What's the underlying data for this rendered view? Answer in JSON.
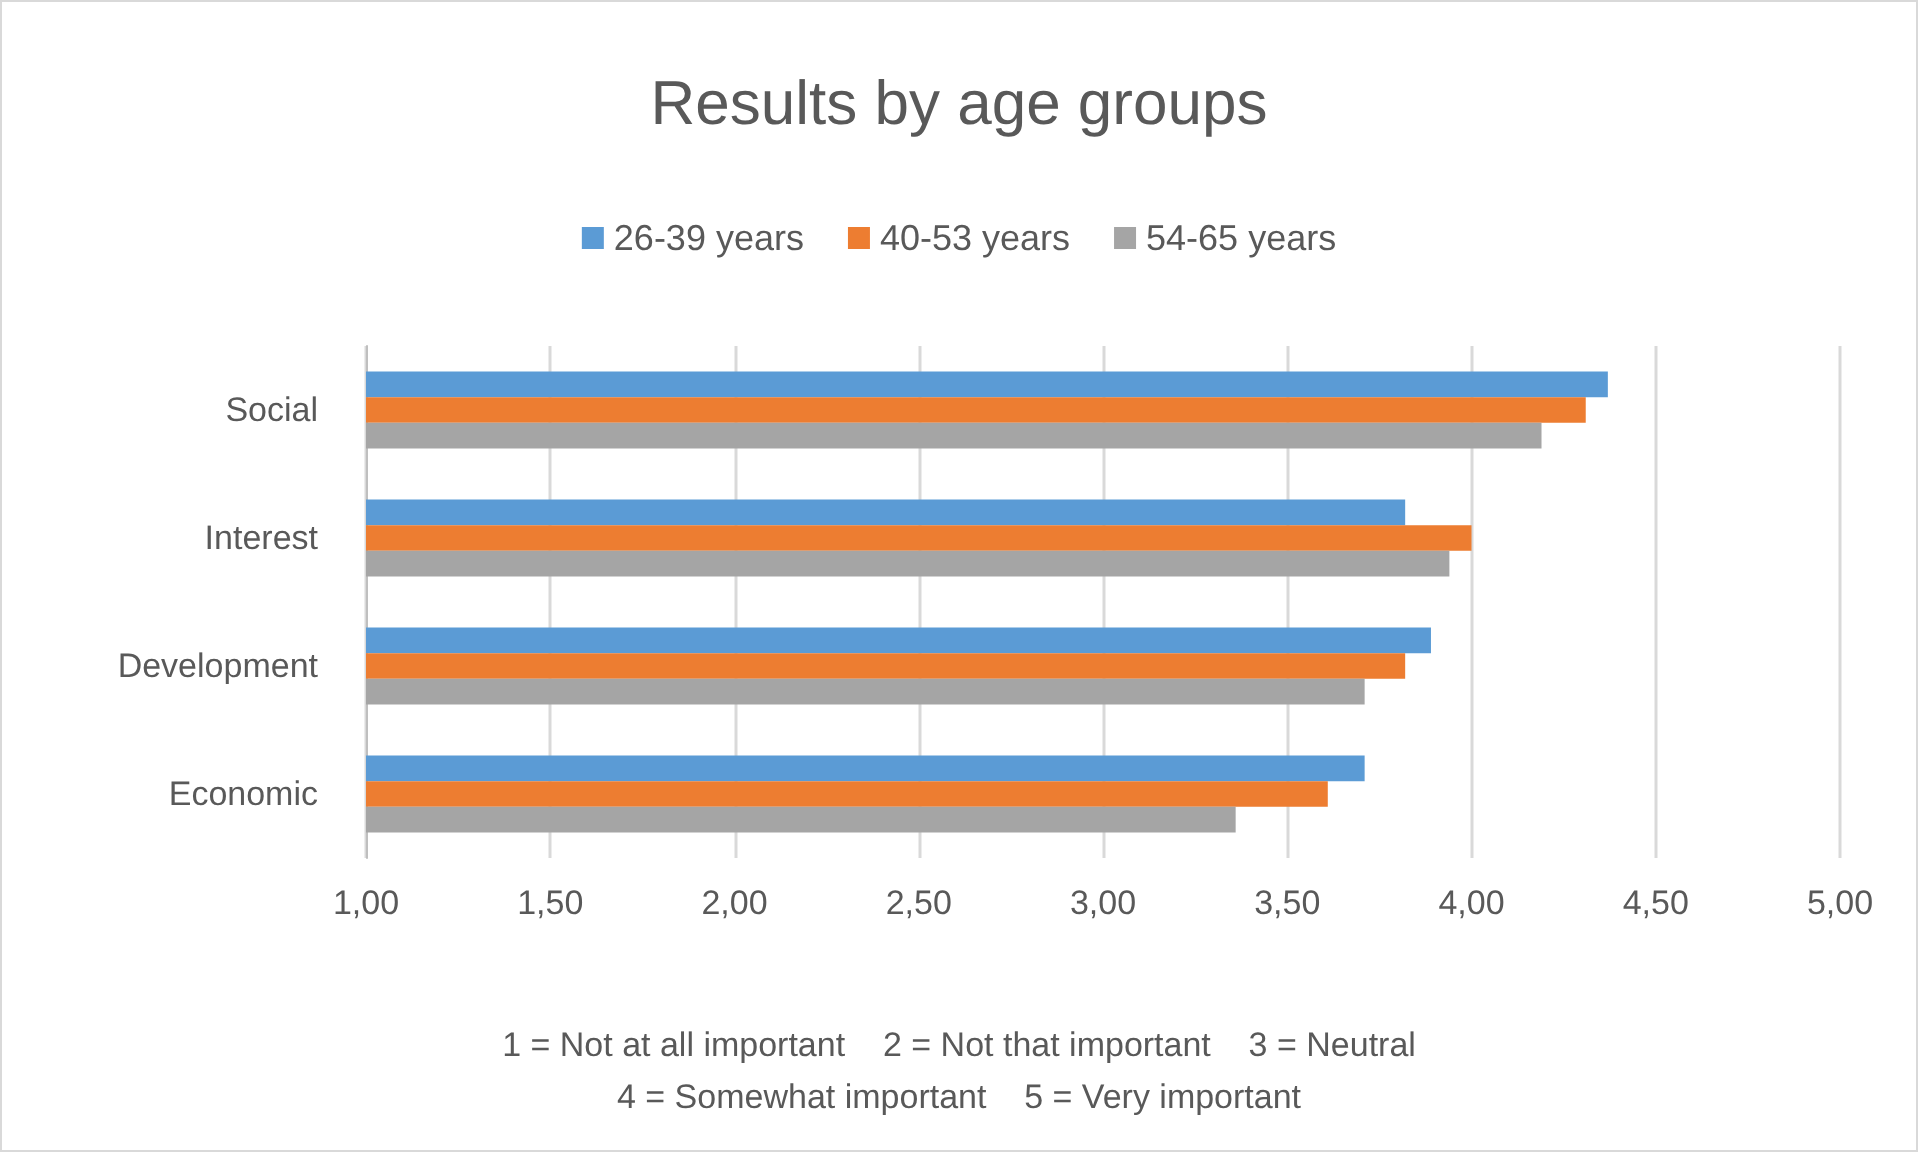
{
  "chart_data": {
    "type": "bar",
    "orientation": "horizontal",
    "title": "Results by age groups",
    "categories": [
      "Social",
      "Interest",
      "Development",
      "Economic"
    ],
    "series": [
      {
        "name": "26-39 years",
        "color": "#5b9bd5",
        "values": [
          4.37,
          3.82,
          3.89,
          3.71
        ]
      },
      {
        "name": "40-53 years",
        "color": "#ed7d31",
        "values": [
          4.31,
          4.0,
          3.82,
          3.61
        ]
      },
      {
        "name": "54-65 years",
        "color": "#a5a5a5",
        "values": [
          4.19,
          3.94,
          3.71,
          3.36
        ]
      }
    ],
    "xlim": [
      1,
      5
    ],
    "xticks": [
      {
        "value": 1,
        "label": "1,00"
      },
      {
        "value": 1.5,
        "label": "1,50"
      },
      {
        "value": 2,
        "label": "2,00"
      },
      {
        "value": 2.5,
        "label": "2,50"
      },
      {
        "value": 3,
        "label": "3,00"
      },
      {
        "value": 3.5,
        "label": "3,50"
      },
      {
        "value": 4,
        "label": "4,00"
      },
      {
        "value": 4.5,
        "label": "4,50"
      },
      {
        "value": 5,
        "label": "5,00"
      }
    ],
    "grid": "x",
    "legend": "top",
    "annotations": [
      "1 = Not at all important    2 = Not that important    3 = Neutral",
      "4 = Somewhat important    5 = Very important"
    ]
  }
}
